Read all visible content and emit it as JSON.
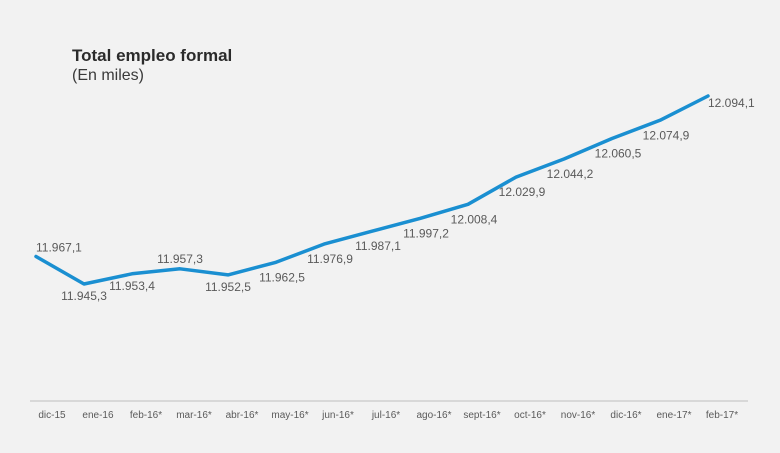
{
  "chart_data": {
    "type": "line",
    "title": "Total empleo formal",
    "subtitle": "(En miles)",
    "categories": [
      "dic-15",
      "ene-16",
      "feb-16*",
      "mar-16*",
      "abr-16*",
      "may-16*",
      "jun-16*",
      "jul-16*",
      "ago-16*",
      "sept-16*",
      "oct-16*",
      "nov-16*",
      "dic-16*",
      "ene-17*",
      "feb-17*"
    ],
    "values": [
      11967.1,
      11945.3,
      11953.4,
      11957.3,
      11952.5,
      11962.5,
      11976.9,
      11987.1,
      11997.2,
      12008.4,
      12029.9,
      12044.2,
      12060.5,
      12074.9,
      12094.1
    ],
    "value_labels": [
      "11.967,1",
      "11.945,3",
      "11.953,4",
      "11.957,3",
      "11.952,5",
      "11.962,5",
      "11.976,9",
      "11.987,1",
      "11.997,2",
      "12.008,4",
      "12.029,9",
      "12.044,2",
      "12.060,5",
      "12.074,9",
      "12.094,1"
    ],
    "line_color": "#1a8fd1",
    "grid": false,
    "legend": "none"
  }
}
